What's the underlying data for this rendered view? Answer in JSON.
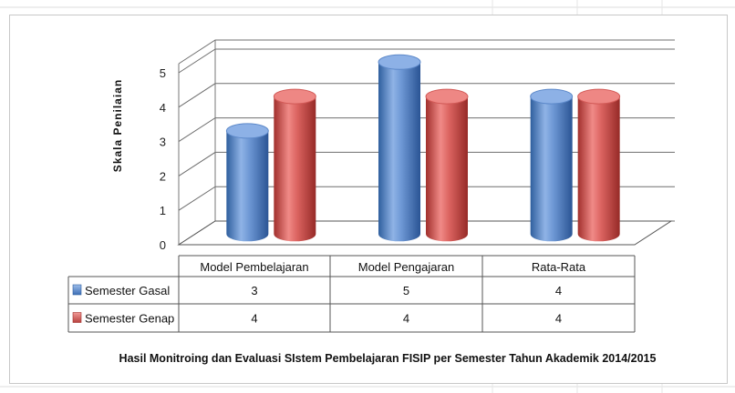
{
  "chart_data": {
    "type": "bar",
    "style": "3d-cylinder",
    "title": "Hasil Monitroing dan Evaluasi SIstem Pembelajaran FISIP per Semester Tahun Akademik 2014/2015",
    "ylabel": "Skala Penilaian",
    "xlabel": "",
    "ylim": [
      0,
      5
    ],
    "yticks": [
      "0",
      "1",
      "2",
      "3",
      "4",
      "5"
    ],
    "grid": true,
    "legend": "data-table-left",
    "categories": [
      "Model Pembelajaran",
      "Model Pengajaran",
      "Rata-Rata"
    ],
    "series": [
      {
        "name": "Semester Gasal",
        "values": [
          3,
          5,
          4
        ],
        "value_labels": [
          "3",
          "5",
          "4"
        ],
        "color": "#4f81bd"
      },
      {
        "name": "Semester Genap",
        "values": [
          4,
          4,
          4
        ],
        "value_labels": [
          "4",
          "4",
          "4"
        ],
        "color": "#c0504d"
      }
    ]
  }
}
